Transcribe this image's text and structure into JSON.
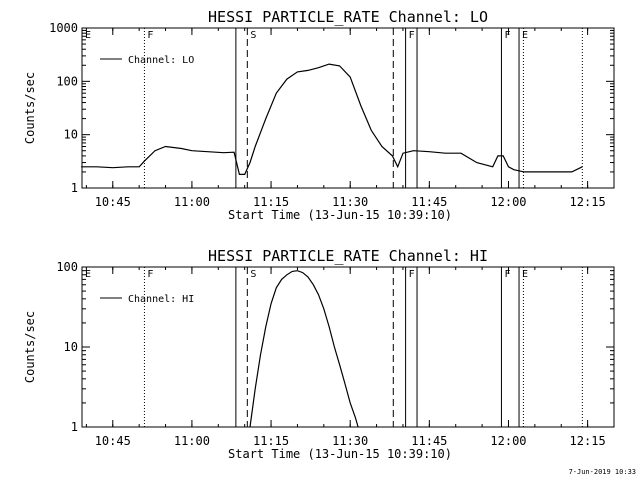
{
  "chart_data": [
    {
      "type": "line",
      "title": "HESSI PARTICLE_RATE Channel: LO",
      "xlabel": "Start Time (13-Jun-15 10:39:10)",
      "ylabel": "Counts/sec",
      "yscale": "log",
      "ylim": [
        1,
        1000
      ],
      "xlim": [
        "10:39:10",
        "12:20:00"
      ],
      "x_ticks": [
        "10:45",
        "11:00",
        "11:15",
        "11:30",
        "11:45",
        "12:00",
        "12:15"
      ],
      "y_ticks": [
        "1",
        "10",
        "100",
        "1000"
      ],
      "legend": {
        "position": "top-left",
        "entries": [
          "Channel: LO"
        ]
      },
      "series": [
        {
          "name": "Channel: LO",
          "x": [
            "10:39",
            "10:42",
            "10:45",
            "10:48",
            "10:50",
            "10:51",
            "10:53",
            "10:55",
            "10:58",
            "11:00",
            "11:03",
            "11:06",
            "11:08",
            "11:09",
            "11:10",
            "11:11",
            "11:12",
            "11:14",
            "11:16",
            "11:18",
            "11:20",
            "11:22",
            "11:24",
            "11:26",
            "11:28",
            "11:30",
            "11:32",
            "11:34",
            "11:36",
            "11:38",
            "11:39",
            "11:40",
            "11:42",
            "11:45",
            "11:48",
            "11:51",
            "11:54",
            "11:57",
            "11:58",
            "11:59",
            "12:00",
            "12:01",
            "12:03",
            "12:06",
            "12:09",
            "12:12",
            "12:14"
          ],
          "y": [
            2.5,
            2.5,
            2.4,
            2.5,
            2.5,
            3.2,
            5,
            6,
            5.5,
            5,
            4.8,
            4.6,
            4.7,
            1.8,
            1.8,
            3,
            6,
            20,
            60,
            110,
            150,
            160,
            180,
            210,
            195,
            120,
            35,
            12,
            6,
            4,
            2.5,
            4.5,
            5,
            4.8,
            4.5,
            4.5,
            3,
            2.5,
            4,
            4,
            2.5,
            2.2,
            2,
            2,
            2,
            2,
            2.5
          ]
        }
      ],
      "flags": [
        {
          "label": "E",
          "time": "10:39:10",
          "style": "solid"
        },
        {
          "label": "F",
          "time": "10:51:00",
          "style": "dotted"
        },
        {
          "label": "",
          "time": "11:08:20",
          "style": "solid"
        },
        {
          "label": "S",
          "time": "11:10:30",
          "style": "dashed"
        },
        {
          "label": "",
          "time": "11:38:10",
          "style": "dashed"
        },
        {
          "label": "F",
          "time": "11:40:30",
          "style": "solid"
        },
        {
          "label": "",
          "time": "11:42:40",
          "style": "solid"
        },
        {
          "label": "F",
          "time": "11:58:40",
          "style": "solid"
        },
        {
          "label": "E",
          "time": "12:02:00",
          "style": "solid"
        },
        {
          "label": "",
          "time": "12:02:50",
          "style": "dotted"
        },
        {
          "label": "",
          "time": "12:14:00",
          "style": "dotted"
        }
      ]
    },
    {
      "type": "line",
      "title": "HESSI PARTICLE_RATE Channel: HI",
      "xlabel": "Start Time (13-Jun-15 10:39:10)",
      "ylabel": "Counts/sec",
      "yscale": "log",
      "ylim": [
        1,
        100
      ],
      "xlim": [
        "10:39:10",
        "12:20:00"
      ],
      "x_ticks": [
        "10:45",
        "11:00",
        "11:15",
        "11:30",
        "11:45",
        "12:00",
        "12:15"
      ],
      "y_ticks": [
        "1",
        "10",
        "100"
      ],
      "legend": {
        "position": "top-left",
        "entries": [
          "Channel: HI"
        ]
      },
      "series": [
        {
          "name": "Channel: HI",
          "x": [
            "11:11:00",
            "11:12",
            "11:13",
            "11:14",
            "11:15",
            "11:16",
            "11:17",
            "11:18",
            "11:19",
            "11:20",
            "11:21",
            "11:22",
            "11:23",
            "11:24",
            "11:25",
            "11:26",
            "11:27",
            "11:28",
            "11:29",
            "11:30",
            "11:31",
            "11:31:30"
          ],
          "y": [
            1,
            3,
            8,
            18,
            35,
            55,
            70,
            80,
            88,
            90,
            85,
            75,
            60,
            45,
            30,
            18,
            10,
            6,
            3.5,
            2,
            1.3,
            1
          ]
        }
      ],
      "flags": [
        {
          "label": "E",
          "time": "10:39:10",
          "style": "solid"
        },
        {
          "label": "F",
          "time": "10:51:00",
          "style": "dotted"
        },
        {
          "label": "",
          "time": "11:08:20",
          "style": "solid"
        },
        {
          "label": "S",
          "time": "11:10:30",
          "style": "dashed"
        },
        {
          "label": "",
          "time": "11:38:10",
          "style": "dashed"
        },
        {
          "label": "F",
          "time": "11:40:30",
          "style": "solid"
        },
        {
          "label": "",
          "time": "11:42:40",
          "style": "solid"
        },
        {
          "label": "F",
          "time": "11:58:40",
          "style": "solid"
        },
        {
          "label": "E",
          "time": "12:02:00",
          "style": "solid"
        },
        {
          "label": "",
          "time": "12:02:50",
          "style": "dotted"
        },
        {
          "label": "",
          "time": "12:14:00",
          "style": "dotted"
        }
      ]
    }
  ],
  "footer": {
    "timestamp": "7-Jun-2019 10:33"
  },
  "colors": {
    "background": "#ffffff",
    "foreground": "#000000"
  }
}
